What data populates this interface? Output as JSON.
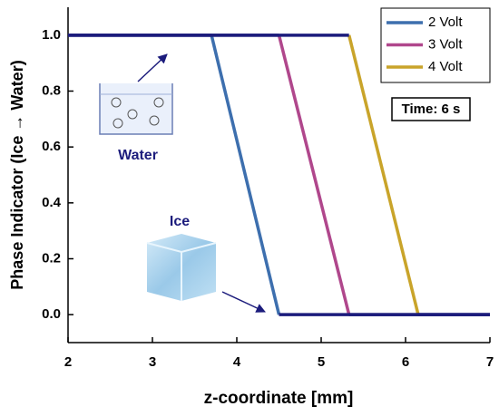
{
  "chart_data": {
    "type": "line",
    "xlabel": "z-coordinate [mm]",
    "ylabel": "Phase Indicator (Ice → Water)",
    "xlim": [
      2,
      7
    ],
    "ylim": [
      -0.1,
      1.1
    ],
    "xticks": [
      2,
      3,
      4,
      5,
      6,
      7
    ],
    "yticks": [
      {
        "value": 0,
        "label": "0.0"
      },
      0.2,
      0.4,
      0.6,
      0.8,
      {
        "value": 1,
        "label": "1.0"
      }
    ],
    "flat_color": "#1c1c7c",
    "series": [
      {
        "name": "2 Volt",
        "color": "#3d6fae",
        "x": [
          2,
          3.7,
          4.5,
          7
        ],
        "values": [
          1,
          1,
          0,
          0
        ]
      },
      {
        "name": "3 Volt",
        "color": "#b0478c",
        "x": [
          2,
          4.5,
          5.33,
          7
        ],
        "values": [
          1,
          1,
          0,
          0
        ]
      },
      {
        "name": "4 Volt",
        "color": "#c9a42a",
        "x": [
          2,
          5.33,
          6.15,
          7
        ],
        "values": [
          1,
          1,
          0,
          0
        ]
      }
    ],
    "legend": "upper right",
    "annotations": {
      "time": "Time: 6 s",
      "water": "Water",
      "ice": "Ice"
    }
  }
}
